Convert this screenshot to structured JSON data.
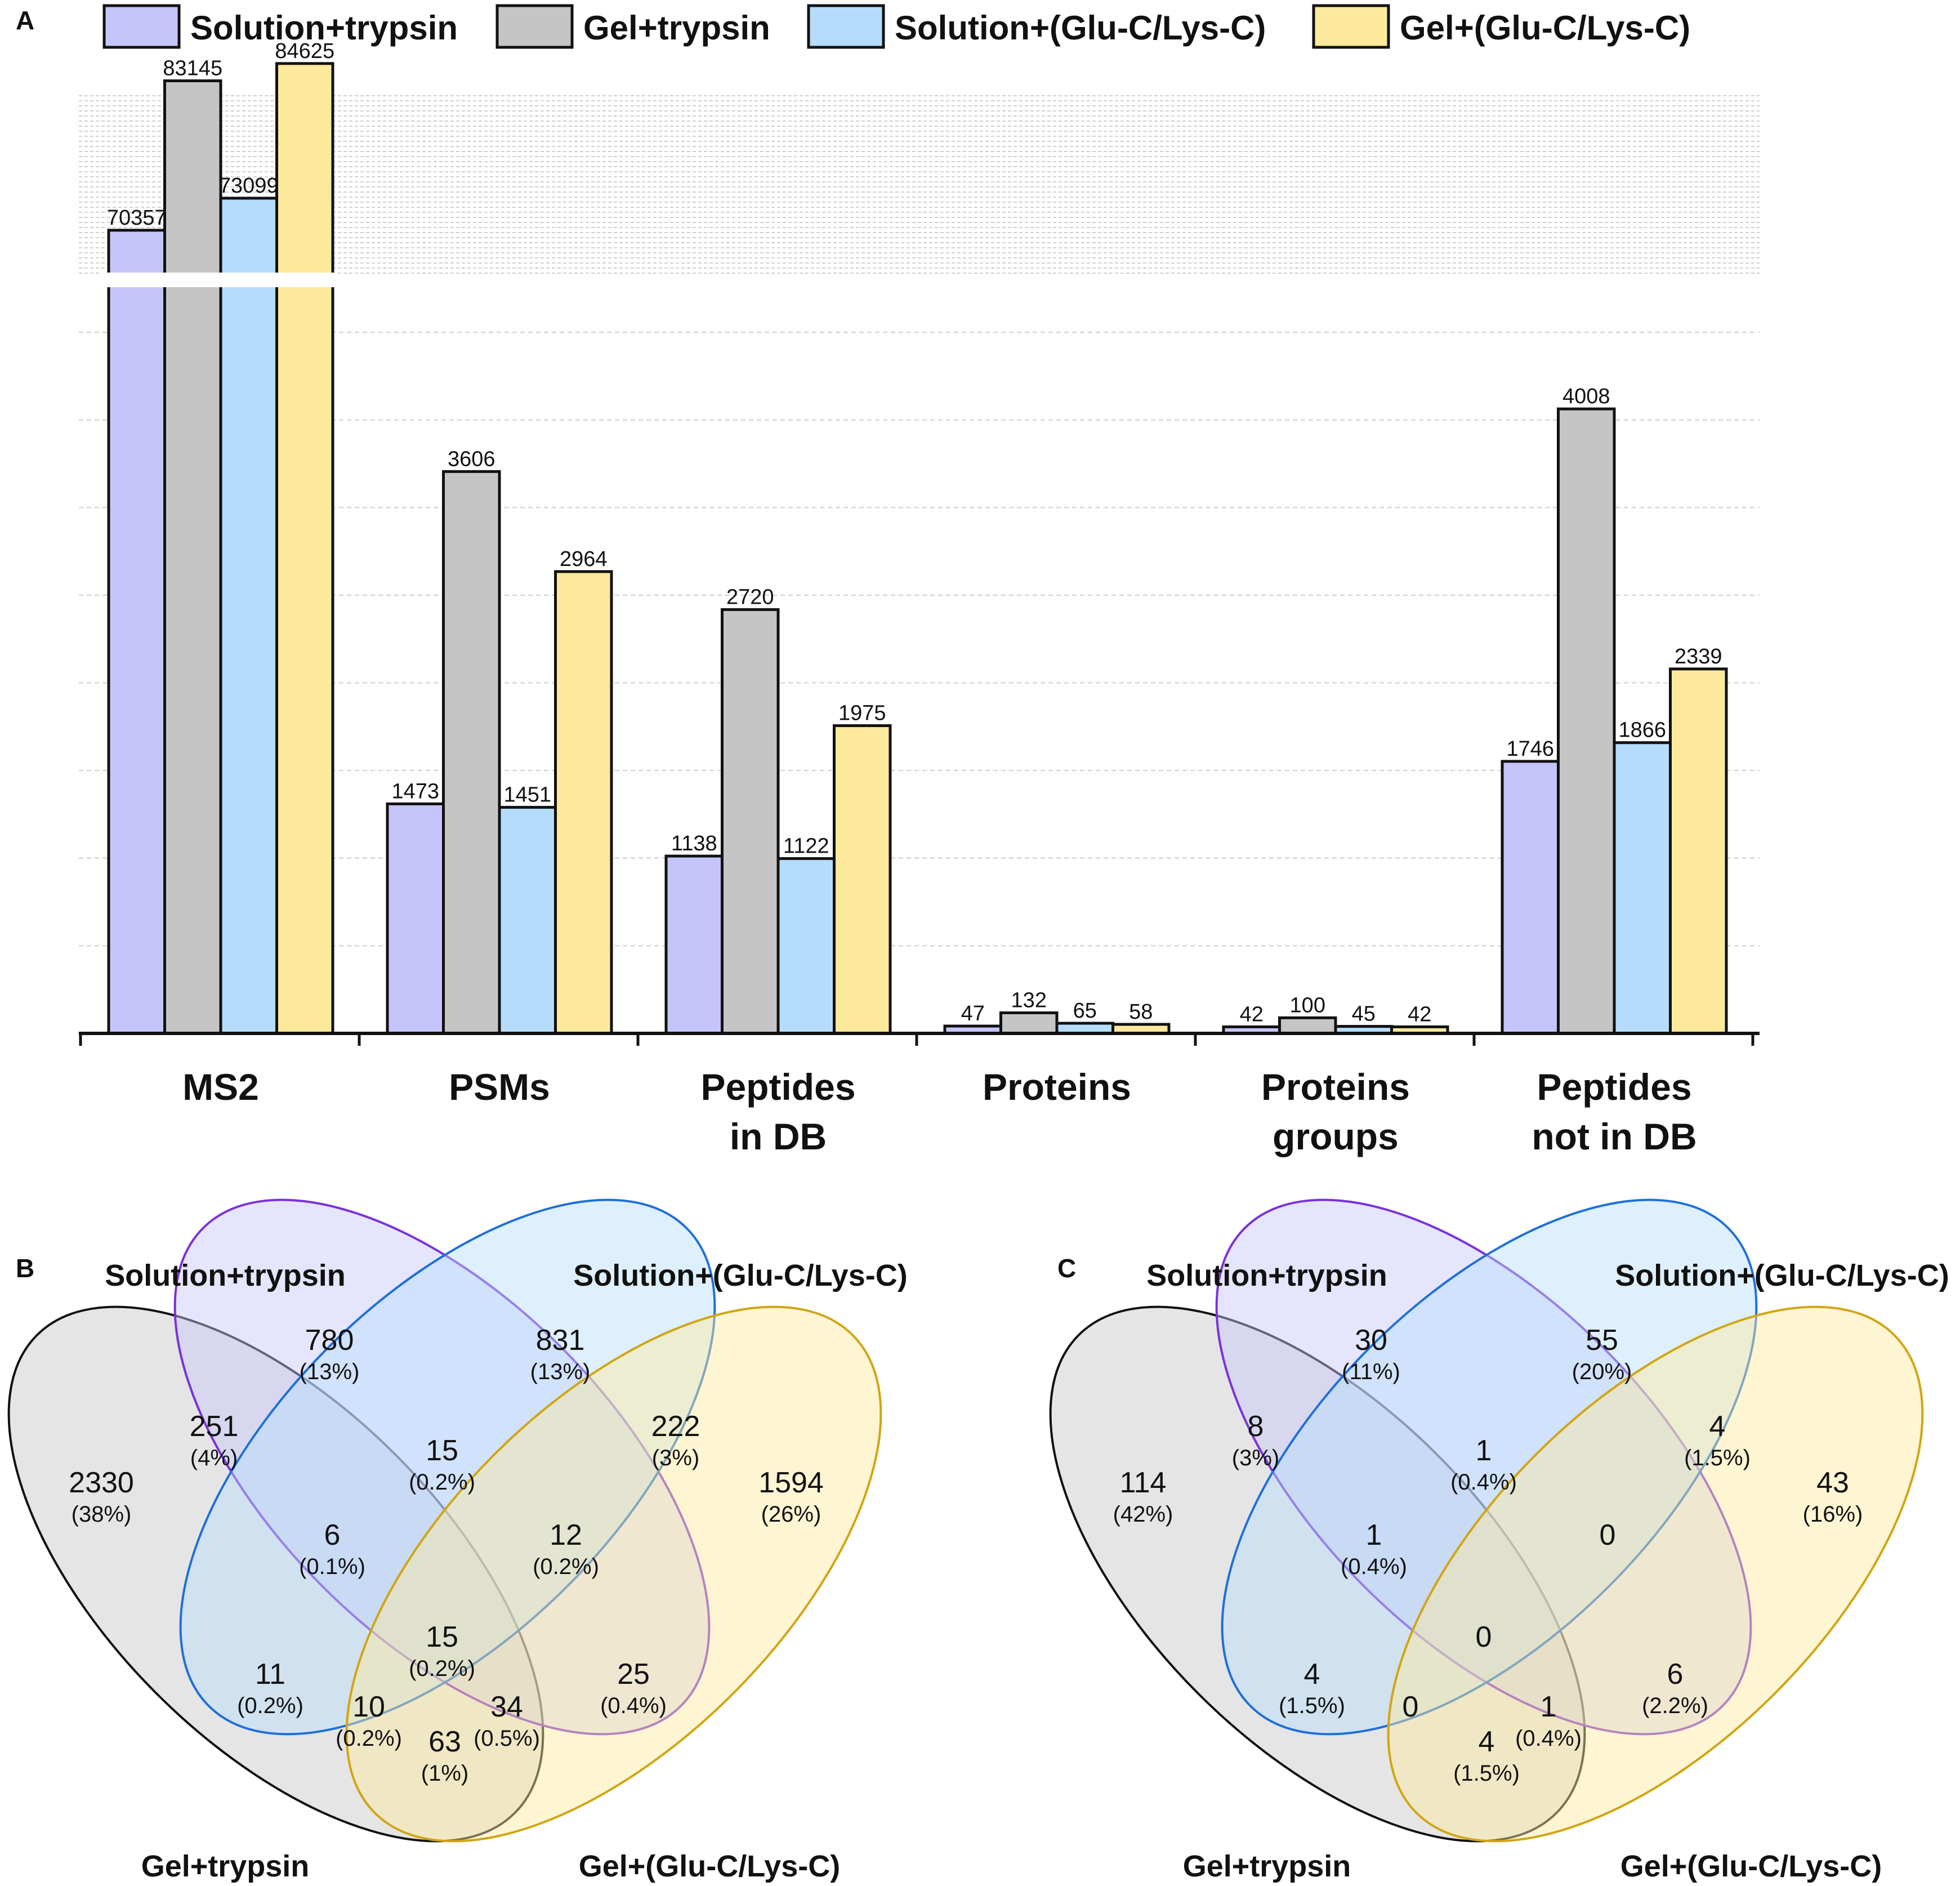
{
  "colors": {
    "solution_trypsin": "#c5c5fb",
    "gel_trypsin": "#c5c5c5",
    "solution_gluc": "#b5ddfb",
    "gel_gluc": "#fce99b",
    "bar_stroke": "#111111",
    "grid": "#cfcfcf",
    "venn_solution_trypsin_stroke": "#7a32d9",
    "venn_solution_gluc_stroke": "#1f6fd9",
    "venn_gel_gluc_stroke": "#d1a512",
    "venn_gel_trypsin_stroke": "#111111"
  },
  "chart_data": [
    {
      "type": "bar",
      "panel_label": "A",
      "categories": [
        "MS2",
        "PSMs",
        "Peptides in DB",
        "Proteins",
        "Proteins groups",
        "Peptides not in DB"
      ],
      "category_lines": [
        [
          "MS2"
        ],
        [
          "PSMs"
        ],
        [
          "Peptides",
          "in DB"
        ],
        [
          "Proteins"
        ],
        [
          "Proteins",
          "groups"
        ],
        [
          "Peptides",
          "not in DB"
        ]
      ],
      "series": [
        {
          "name": "Solution+trypsin",
          "values": [
            70357,
            1473,
            1138,
            47,
            42,
            1746
          ],
          "labels": [
            "70357",
            "1473",
            "1138",
            "47",
            "42",
            "1746"
          ]
        },
        {
          "name": "Gel+trypsin",
          "values": [
            83145,
            3606,
            2720,
            132,
            100,
            4008
          ],
          "labels": [
            "83145",
            "3606",
            "2720",
            "132",
            "100",
            "4008"
          ]
        },
        {
          "name": "Solution+(Glu-C/Lys-C)",
          "values": [
            73099,
            1451,
            1122,
            65,
            45,
            1866
          ],
          "labels": [
            "73099",
            "1451",
            "1122",
            "65",
            "45",
            "1866"
          ]
        },
        {
          "name": "Gel+(Glu-C/Lys-C)",
          "values": [
            84625,
            2964,
            1975,
            58,
            42,
            2339
          ],
          "labels": [
            "84625",
            "2964",
            "1975",
            "58",
            "42",
            "2339"
          ]
        }
      ],
      "ylim": [
        0,
        4500
      ],
      "axis_break": {
        "lower_max": 4500,
        "upper_range": [
          65000,
          85000
        ]
      },
      "grid": true,
      "legend_position": "top",
      "xlabel": "",
      "ylabel": ""
    },
    {
      "type": "venn",
      "panel_label": "B",
      "sets": [
        "Solution+trypsin",
        "Solution+(Glu-C/Lys-C)",
        "Gel+trypsin",
        "Gel+(Glu-C/Lys-C)"
      ],
      "regions": {
        "solution_trypsin_only": {
          "count": "780",
          "pct": "(13%)"
        },
        "solution_gluc_only": {
          "count": "831",
          "pct": "(13%)"
        },
        "gel_trypsin_only": {
          "count": "2330",
          "pct": "(38%)"
        },
        "gel_gluc_only": {
          "count": "1594",
          "pct": "(26%)"
        },
        "st_gt": {
          "count": "251",
          "pct": "(4%)"
        },
        "st_sg": {
          "count": "15",
          "pct": "(0.2%)"
        },
        "sg_gg": {
          "count": "222",
          "pct": "(3%)"
        },
        "st_sg_gt": {
          "count": "6",
          "pct": "(0.1%)"
        },
        "st_sg_gg": {
          "count": "12",
          "pct": "(0.2%)"
        },
        "all": {
          "count": "15",
          "pct": "(0.2%)"
        },
        "sg_gt": {
          "count": "11",
          "pct": "(0.2%)"
        },
        "st_gg": {
          "count": "25",
          "pct": "(0.4%)"
        },
        "sg_gt_gg": {
          "count": "10",
          "pct": "(0.2%)"
        },
        "st_gt_gg": {
          "count": "34",
          "pct": "(0.5%)"
        },
        "gt_gg": {
          "count": "63",
          "pct": "(1%)"
        }
      }
    },
    {
      "type": "venn",
      "panel_label": "C",
      "sets": [
        "Solution+trypsin",
        "Solution+(Glu-C/Lys-C)",
        "Gel+trypsin",
        "Gel+(Glu-C/Lys-C)"
      ],
      "regions": {
        "solution_trypsin_only": {
          "count": "30",
          "pct": "(11%)"
        },
        "solution_gluc_only": {
          "count": "55",
          "pct": "(20%)"
        },
        "gel_trypsin_only": {
          "count": "114",
          "pct": "(42%)"
        },
        "gel_gluc_only": {
          "count": "43",
          "pct": "(16%)"
        },
        "st_gt": {
          "count": "8",
          "pct": "(3%)"
        },
        "st_sg": {
          "count": "1",
          "pct": "(0.4%)"
        },
        "sg_gg": {
          "count": "4",
          "pct": "(1.5%)"
        },
        "st_sg_gt": {
          "count": "1",
          "pct": "(0.4%)"
        },
        "st_sg_gg": {
          "count": "0",
          "pct": ""
        },
        "all": {
          "count": "0",
          "pct": ""
        },
        "sg_gt": {
          "count": "4",
          "pct": "(1.5%)"
        },
        "st_gg": {
          "count": "6",
          "pct": "(2.2%)"
        },
        "sg_gt_gg": {
          "count": "0",
          "pct": ""
        },
        "st_gt_gg": {
          "count": "1",
          "pct": "(0.4%)"
        },
        "gt_gg": {
          "count": "4",
          "pct": "(1.5%)"
        }
      }
    }
  ]
}
